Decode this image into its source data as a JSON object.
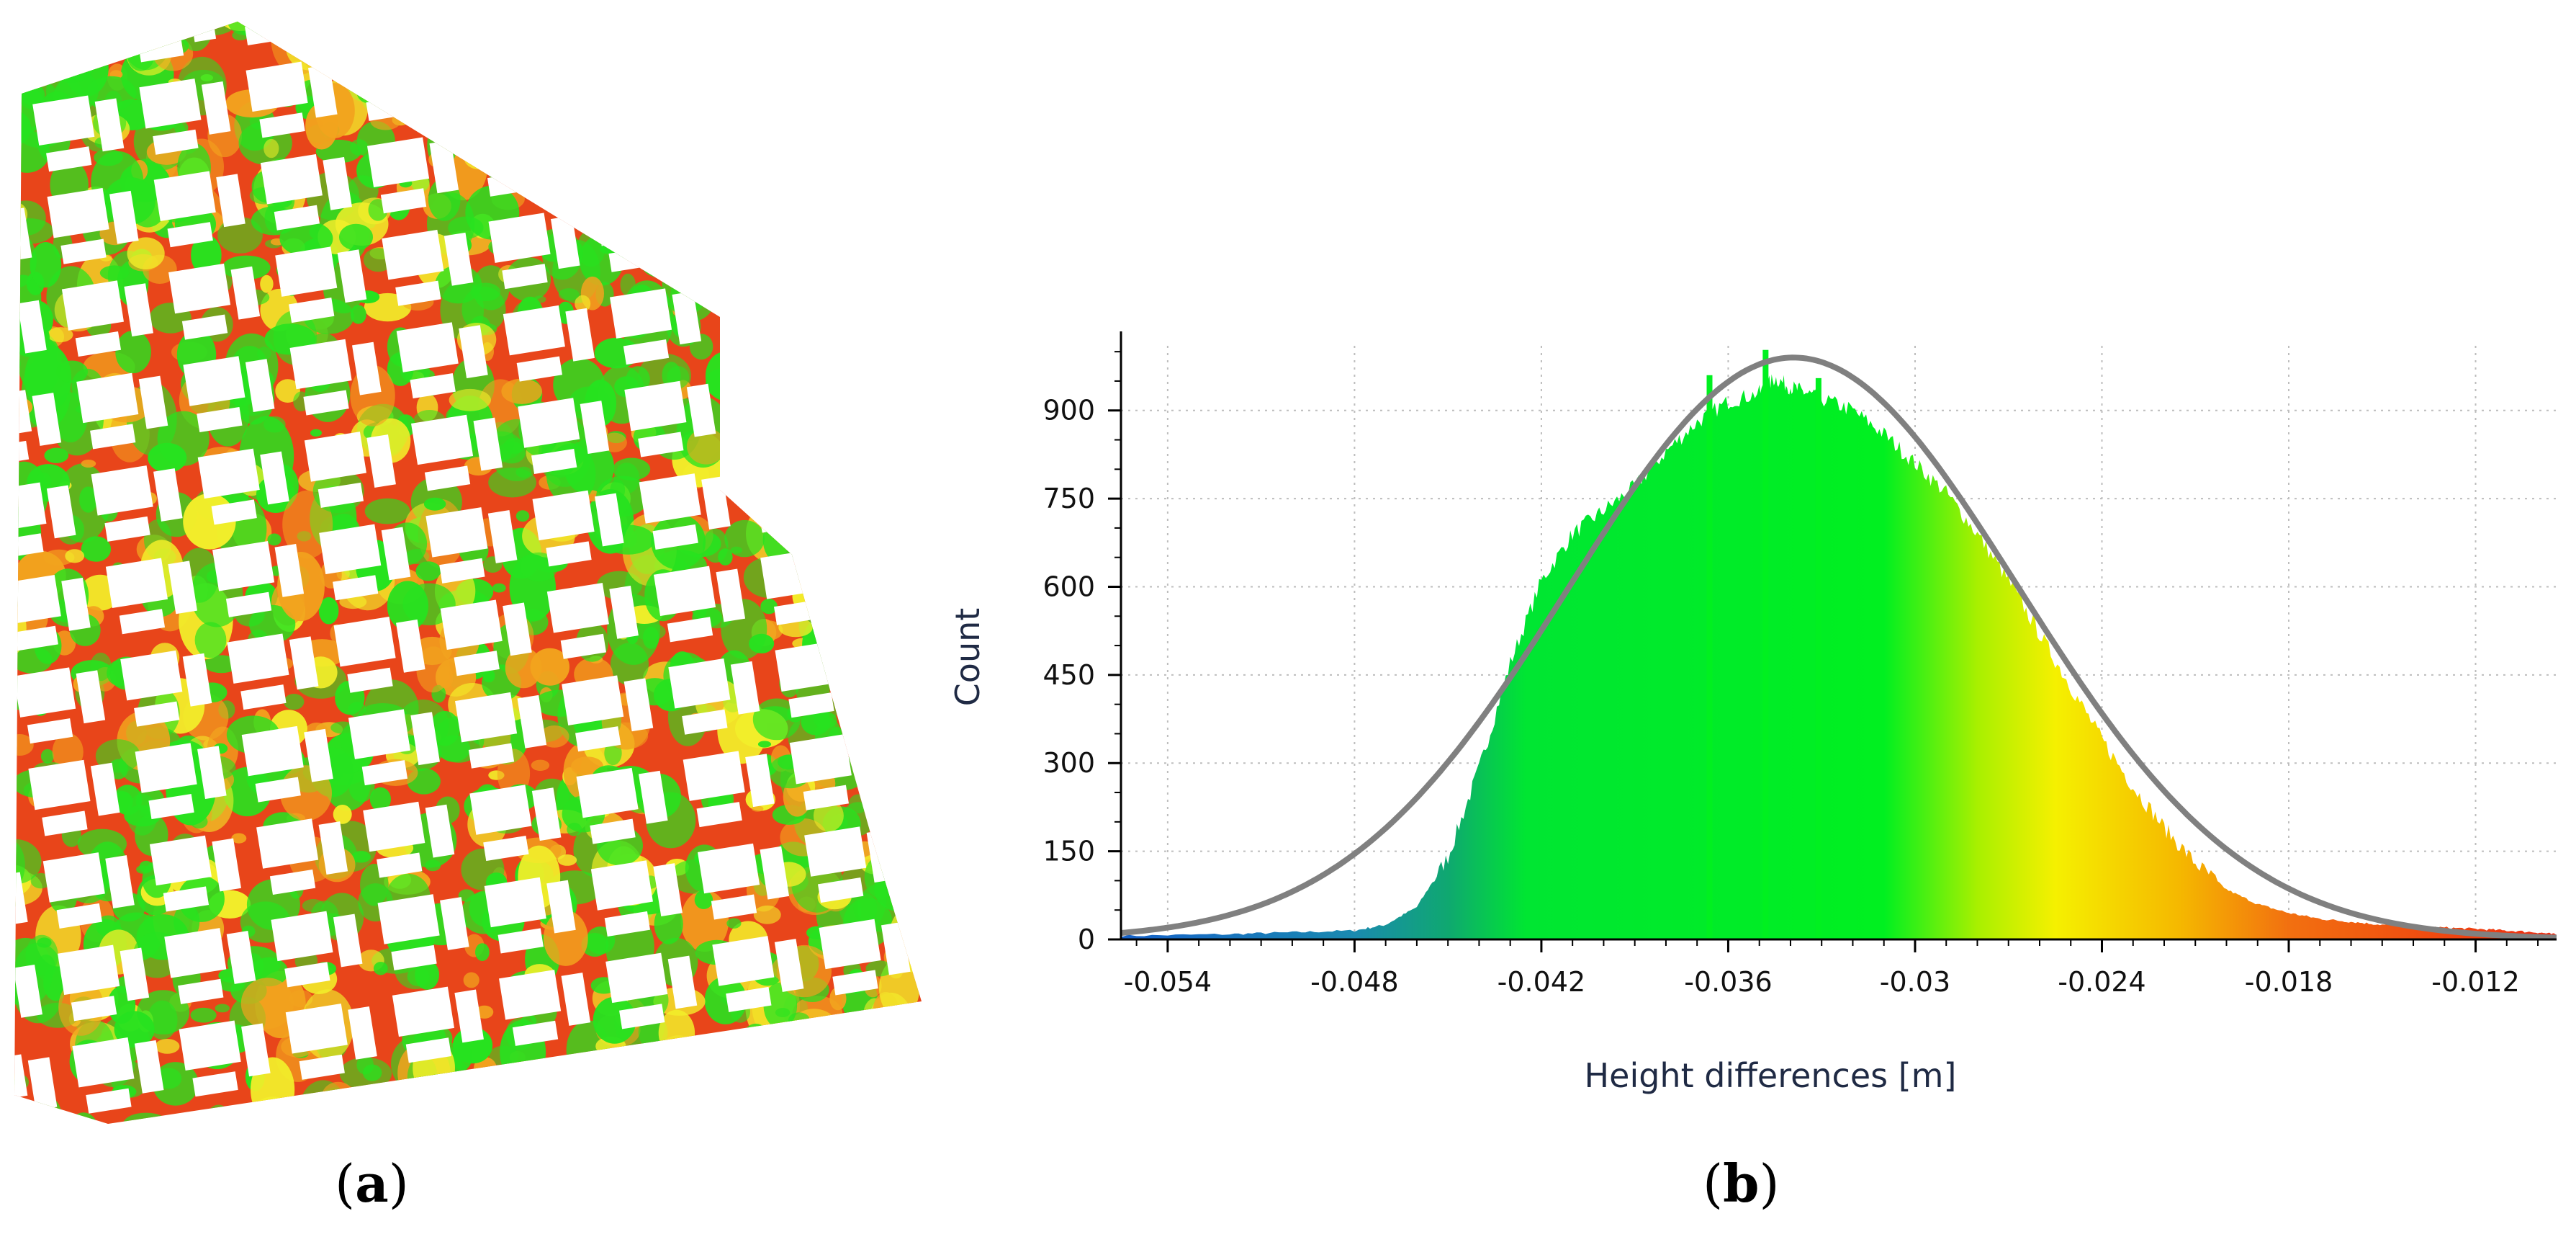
{
  "panel_a": {
    "caption_open": "(",
    "caption_letter": "a",
    "caption_close": ")"
  },
  "panel_b": {
    "caption_open": "(",
    "caption_letter": "b",
    "caption_close": ")"
  },
  "colors": {
    "map_red": "#e8451a",
    "map_orange": "#f2a31e",
    "map_yellow": "#f2ee2a",
    "map_green": "#27e21f",
    "fit_curve": "#808080",
    "grid": "#bdbdbd"
  },
  "chart_data": {
    "type": "bar",
    "subtype": "histogram_with_normal_fit",
    "title": "",
    "xlabel": "Height differences [m]",
    "ylabel": "Count",
    "xlim": [
      -0.0555,
      -0.0094
    ],
    "ylim": [
      0,
      1010
    ],
    "xticks": [
      -0.054,
      -0.048,
      -0.042,
      -0.036,
      -0.03,
      -0.024,
      -0.018,
      -0.012
    ],
    "xtick_labels": [
      "-0.054",
      "-0.048",
      "-0.042",
      "-0.036",
      "-0.03",
      "-0.024",
      "-0.018",
      "-0.012"
    ],
    "yticks": [
      0,
      150,
      300,
      450,
      600,
      750,
      900
    ],
    "ytick_labels": [
      "0",
      "150",
      "300",
      "450",
      "600",
      "750",
      "900"
    ],
    "grid": true,
    "fit": {
      "type": "normal",
      "mean": -0.0339,
      "std": 0.0072,
      "peak": 990
    },
    "histogram_outline": [
      [
        -0.0555,
        6
      ],
      [
        -0.052,
        9
      ],
      [
        -0.05,
        12
      ],
      [
        -0.048,
        15
      ],
      [
        -0.047,
        25
      ],
      [
        -0.046,
        55
      ],
      [
        -0.045,
        140
      ],
      [
        -0.044,
        290
      ],
      [
        -0.043,
        470
      ],
      [
        -0.042,
        610
      ],
      [
        -0.041,
        690
      ],
      [
        -0.04,
        730
      ],
      [
        -0.039,
        770
      ],
      [
        -0.038,
        830
      ],
      [
        -0.037,
        880
      ],
      [
        -0.036,
        915
      ],
      [
        -0.035,
        930
      ],
      [
        -0.0345,
        955
      ],
      [
        -0.034,
        940
      ],
      [
        -0.0335,
        930
      ],
      [
        -0.033,
        920
      ],
      [
        -0.032,
        900
      ],
      [
        -0.031,
        860
      ],
      [
        -0.03,
        810
      ],
      [
        -0.029,
        760
      ],
      [
        -0.028,
        690
      ],
      [
        -0.027,
        610
      ],
      [
        -0.026,
        520
      ],
      [
        -0.025,
        430
      ],
      [
        -0.024,
        340
      ],
      [
        -0.023,
        260
      ],
      [
        -0.022,
        190
      ],
      [
        -0.021,
        130
      ],
      [
        -0.02,
        85
      ],
      [
        -0.019,
        60
      ],
      [
        -0.018,
        45
      ],
      [
        -0.017,
        35
      ],
      [
        -0.016,
        30
      ],
      [
        -0.015,
        25
      ],
      [
        -0.014,
        22
      ],
      [
        -0.013,
        20
      ],
      [
        -0.012,
        18
      ],
      [
        -0.011,
        15
      ],
      [
        -0.01,
        12
      ],
      [
        -0.0094,
        8
      ]
    ],
    "spikes": [
      [
        -0.0348,
        1003
      ],
      [
        -0.0366,
        960
      ],
      [
        -0.0331,
        955
      ]
    ],
    "color_stops": [
      {
        "x": -0.0555,
        "color": "#1560c8"
      },
      {
        "x": -0.048,
        "color": "#1a8ab0"
      },
      {
        "x": -0.045,
        "color": "#0fa870"
      },
      {
        "x": -0.0425,
        "color": "#00e632"
      },
      {
        "x": -0.031,
        "color": "#00f020"
      },
      {
        "x": -0.028,
        "color": "#a8f000"
      },
      {
        "x": -0.0255,
        "color": "#f5f000"
      },
      {
        "x": -0.0215,
        "color": "#f5b800"
      },
      {
        "x": -0.018,
        "color": "#f27010"
      },
      {
        "x": -0.0094,
        "color": "#ee2a10"
      }
    ]
  }
}
